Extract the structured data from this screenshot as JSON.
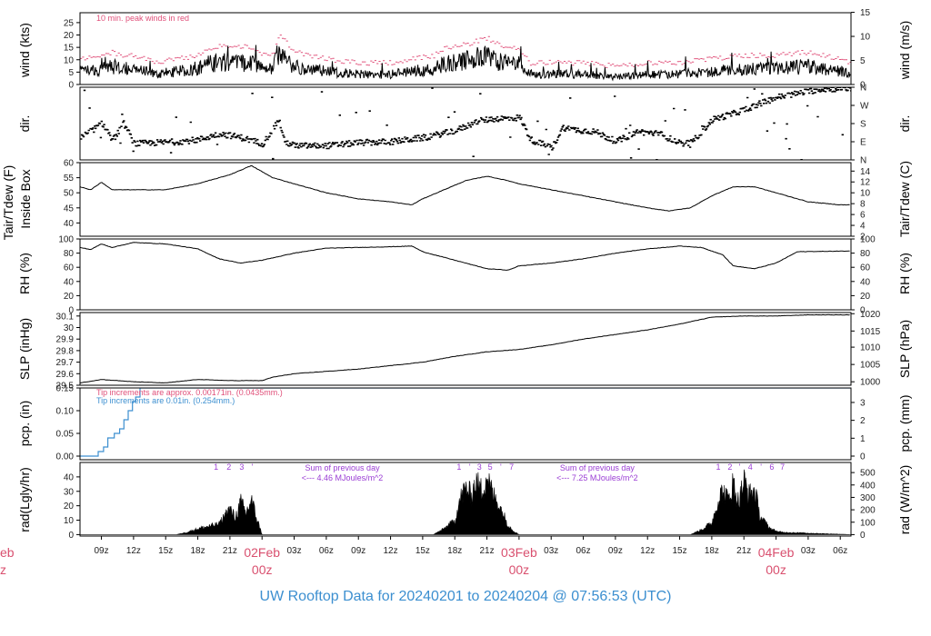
{
  "title": "UW Rooftop Data for 20240201  to  20240204 @ 07:56:53  (UTC)",
  "colors": {
    "frame": "#000000",
    "data": "#000000",
    "peak": "#e0507a",
    "pcp": "#3c8fd0",
    "purple": "#9a3dd4",
    "day": "#d9506f"
  },
  "time_axis": {
    "start_hour_utc": 7,
    "end_hour_utc": 79,
    "ticks": [
      {
        "h": 9,
        "label": "09z"
      },
      {
        "h": 12,
        "label": "12z"
      },
      {
        "h": 15,
        "label": "15z"
      },
      {
        "h": 18,
        "label": "18z"
      },
      {
        "h": 21,
        "label": "21z"
      },
      {
        "h": 27,
        "label": "03z"
      },
      {
        "h": 30,
        "label": "06z"
      },
      {
        "h": 33,
        "label": "09z"
      },
      {
        "h": 36,
        "label": "12z"
      },
      {
        "h": 39,
        "label": "15z"
      },
      {
        "h": 42,
        "label": "18z"
      },
      {
        "h": 45,
        "label": "21z"
      },
      {
        "h": 51,
        "label": "03z"
      },
      {
        "h": 54,
        "label": "06z"
      },
      {
        "h": 57,
        "label": "09z"
      },
      {
        "h": 60,
        "label": "12z"
      },
      {
        "h": 63,
        "label": "15z"
      },
      {
        "h": 66,
        "label": "18z"
      },
      {
        "h": 69,
        "label": "21z"
      },
      {
        "h": 75,
        "label": "03z"
      },
      {
        "h": 78,
        "label": "06z"
      }
    ],
    "day_marks": [
      {
        "h": 24,
        "day": "02Feb",
        "zone": "00z"
      },
      {
        "h": 48,
        "day": "03Feb",
        "zone": "00z"
      },
      {
        "h": 72,
        "day": "04Feb",
        "zone": "00z"
      }
    ],
    "left_cut_day": "eb",
    "left_cut_zone": "z"
  },
  "chart_data": [
    {
      "type": "line",
      "panel": "wind",
      "ylabel": "wind (kts)",
      "ylabel_right": "wind (m/s)",
      "ylim": [
        0,
        29
      ],
      "yticks": [
        0,
        5,
        10,
        15,
        20,
        25
      ],
      "right_ticks": [
        {
          "v": 0,
          "label": "0"
        },
        {
          "v": 9.72,
          "label": "5"
        },
        {
          "v": 19.44,
          "label": "10"
        },
        {
          "v": 29.16,
          "label": "15"
        }
      ],
      "annotation": "10 min. peak winds in red",
      "series": [
        {
          "kind": "wind",
          "x": [
            7,
            9,
            10,
            11,
            12,
            14,
            16,
            18,
            19,
            21,
            23,
            24,
            25,
            25.5,
            27,
            30,
            33,
            36,
            38,
            40,
            41,
            42,
            43,
            44,
            45,
            46,
            47,
            48,
            49,
            51,
            54,
            57,
            60,
            63,
            66,
            69,
            72,
            75,
            78,
            79
          ],
          "y": [
            5,
            6,
            7,
            6,
            6,
            4,
            5,
            6,
            8,
            9,
            8,
            6,
            6,
            12,
            7,
            5,
            4,
            4,
            5,
            6,
            8,
            9,
            9,
            10,
            11,
            9,
            8,
            8,
            4,
            4,
            4,
            3,
            4,
            4,
            5,
            6,
            6,
            7,
            5,
            4
          ]
        }
      ]
    },
    {
      "type": "scatter",
      "panel": "dir",
      "ylabel": "dir.",
      "ylabel_right": "dir.",
      "ylim": [
        0,
        360
      ],
      "right_ticks": [
        {
          "v": 0,
          "label": "N"
        },
        {
          "v": 90,
          "label": "E"
        },
        {
          "v": 180,
          "label": "S"
        },
        {
          "v": 270,
          "label": "W"
        },
        {
          "v": 360,
          "label": "N"
        }
      ],
      "series": [
        {
          "kind": "dir",
          "x": [
            7,
            9,
            10,
            11,
            12,
            14,
            16,
            18,
            20,
            22,
            24,
            25.5,
            26,
            27,
            30,
            33,
            36,
            39,
            42,
            44,
            45,
            46,
            47,
            48,
            49,
            50,
            51,
            52,
            53,
            55,
            57,
            59,
            61,
            63,
            64,
            66,
            68,
            70,
            72,
            74,
            76,
            79
          ],
          "y": [
            110,
            180,
            100,
            180,
            80,
            85,
            90,
            100,
            130,
            110,
            80,
            200,
            90,
            70,
            70,
            85,
            90,
            110,
            145,
            190,
            200,
            205,
            205,
            210,
            100,
            80,
            60,
            160,
            150,
            140,
            90,
            140,
            130,
            80,
            85,
            200,
            230,
            270,
            310,
            330,
            350,
            355
          ]
        }
      ]
    },
    {
      "type": "line",
      "panel": "temp",
      "ylabel": "Tair/Tdew (F)",
      "ylabel2": "Inside Box",
      "ylabel_right": "Tair/Tdew (C)",
      "ylim": [
        35.6,
        60
      ],
      "yticks": [
        40,
        45,
        50,
        55,
        60
      ],
      "right_ticks": [
        {
          "v": 35.6,
          "label": "2"
        },
        {
          "v": 39.2,
          "label": "4"
        },
        {
          "v": 42.8,
          "label": "6"
        },
        {
          "v": 46.4,
          "label": "8"
        },
        {
          "v": 50,
          "label": "10"
        },
        {
          "v": 53.6,
          "label": "12"
        },
        {
          "v": 57.2,
          "label": "14"
        }
      ],
      "series": [
        {
          "kind": "temp",
          "x": [
            7,
            8,
            9,
            10,
            12,
            15,
            18,
            21,
            23,
            24,
            25,
            27,
            30,
            33,
            36,
            38,
            39,
            41,
            43,
            45,
            47,
            48,
            51,
            54,
            57,
            60,
            62,
            64,
            66,
            68,
            70,
            72,
            75,
            78,
            79
          ],
          "y": [
            52,
            51,
            53.5,
            51,
            51,
            51,
            53,
            56,
            59,
            57,
            55,
            53,
            50,
            48,
            47,
            46,
            48,
            51,
            54,
            55.5,
            54,
            53,
            51,
            49,
            47,
            45,
            44,
            45,
            49,
            52,
            52,
            50,
            47,
            46,
            46
          ]
        }
      ]
    },
    {
      "type": "line",
      "panel": "rh",
      "ylabel": "RH (%)",
      "ylabel_right": "RH (%)",
      "ylim": [
        0,
        100
      ],
      "yticks": [
        0,
        20,
        40,
        60,
        80,
        100
      ],
      "right_ticks": [
        {
          "v": 0,
          "label": "0"
        },
        {
          "v": 20,
          "label": "20"
        },
        {
          "v": 40,
          "label": "40"
        },
        {
          "v": 60,
          "label": "60"
        },
        {
          "v": 80,
          "label": "80"
        },
        {
          "v": 100,
          "label": "100"
        }
      ],
      "series": [
        {
          "kind": "rh",
          "x": [
            7,
            8,
            9,
            10,
            12,
            15,
            18,
            20,
            22,
            24,
            27,
            30,
            33,
            36,
            38,
            39,
            42,
            45,
            47,
            48,
            51,
            54,
            57,
            60,
            63,
            65,
            67,
            68,
            70,
            72,
            74,
            79
          ],
          "y": [
            88,
            85,
            93,
            88,
            95,
            93,
            86,
            72,
            66,
            70,
            80,
            87,
            88,
            89,
            90,
            82,
            70,
            58,
            56,
            62,
            66,
            72,
            80,
            86,
            90,
            88,
            78,
            62,
            58,
            66,
            82,
            83
          ]
        }
      ]
    },
    {
      "type": "line",
      "panel": "slp",
      "ylabel": "SLP (inHg)",
      "ylabel_right": "SLP (hPa)",
      "ylim": [
        29.5,
        30.13
      ],
      "yticks": [
        29.5,
        29.6,
        29.7,
        29.8,
        29.9,
        30.0,
        30.1
      ],
      "right_ticks": [
        {
          "v": 29.53,
          "label": "1000"
        },
        {
          "v": 29.68,
          "label": "1005"
        },
        {
          "v": 29.83,
          "label": "1010"
        },
        {
          "v": 29.97,
          "label": "1015"
        },
        {
          "v": 30.12,
          "label": "1020"
        }
      ],
      "series": [
        {
          "kind": "slp",
          "x": [
            7,
            9,
            12,
            15,
            18,
            21,
            24,
            25,
            27,
            30,
            33,
            36,
            39,
            42,
            45,
            48,
            51,
            54,
            57,
            60,
            63,
            65,
            66,
            69,
            72,
            75,
            79
          ],
          "y": [
            29.52,
            29.55,
            29.53,
            29.52,
            29.55,
            29.54,
            29.54,
            29.57,
            29.6,
            29.62,
            29.64,
            29.67,
            29.7,
            29.75,
            29.79,
            29.81,
            29.85,
            29.9,
            29.94,
            29.98,
            30.03,
            30.07,
            30.09,
            30.1,
            30.1,
            30.11,
            30.11
          ]
        }
      ]
    },
    {
      "type": "line",
      "panel": "pcp",
      "ylabel": "pcp. (in)",
      "ylabel_right": "pcp. (mm)",
      "ylim": [
        -0.008,
        0.15
      ],
      "yticks": [
        0,
        0.05,
        0.1,
        0.15
      ],
      "ytick_labels": [
        "0.00",
        "0.05",
        "0.10",
        "0.15"
      ],
      "right_ticks": [
        {
          "v": 0,
          "label": "0"
        },
        {
          "v": 0.03937,
          "label": "1"
        },
        {
          "v": 0.07874,
          "label": "2"
        },
        {
          "v": 0.11811,
          "label": "3"
        }
      ],
      "annotations": [
        "Tip increments are approx. 0.00171in. (0.0435mm.)",
        "Tip increments are 0.01in. (0.254mm.)"
      ],
      "series": [
        {
          "kind": "pcp",
          "x": [
            7,
            8.7,
            8.7,
            9.2,
            9.2,
            9.6,
            9.6,
            10.2,
            10.2,
            10.7,
            10.7,
            11.1,
            11.1,
            11.5,
            11.5,
            11.9,
            11.9,
            12.2,
            12.2,
            12.6,
            12.6,
            79
          ],
          "y": [
            0,
            0,
            0.01,
            0.01,
            0.02,
            0.02,
            0.04,
            0.04,
            0.05,
            0.05,
            0.06,
            0.06,
            0.08,
            0.08,
            0.1,
            0.1,
            0.12,
            0.12,
            0.13,
            0.13,
            0.15,
            0.15
          ]
        }
      ]
    },
    {
      "type": "area",
      "panel": "rad",
      "ylabel": "rad(Lgly/hr)",
      "ylabel_right": "rad (W/m^2)",
      "ylim": [
        -1,
        50
      ],
      "yticks": [
        0,
        10,
        20,
        30,
        40
      ],
      "right_ticks": [
        {
          "v": 0,
          "label": "0"
        },
        {
          "v": 8.6,
          "label": "100"
        },
        {
          "v": 17.2,
          "label": "200"
        },
        {
          "v": 25.8,
          "label": "300"
        },
        {
          "v": 34.4,
          "label": "400"
        },
        {
          "v": 43,
          "label": "500"
        }
      ],
      "hour_markers": [
        {
          "h": 19.7,
          "label": "1"
        },
        {
          "h": 20.9,
          "label": "2"
        },
        {
          "h": 22.1,
          "label": "3"
        },
        {
          "h": 23.1,
          "label": "'"
        },
        {
          "h": 42.4,
          "label": "1"
        },
        {
          "h": 43.4,
          "label": "'"
        },
        {
          "h": 44.3,
          "label": "3"
        },
        {
          "h": 45.3,
          "label": "5"
        },
        {
          "h": 46.3,
          "label": "'"
        },
        {
          "h": 47.3,
          "label": "7"
        },
        {
          "h": 66.6,
          "label": "1"
        },
        {
          "h": 67.7,
          "label": "2"
        },
        {
          "h": 68.6,
          "label": "'"
        },
        {
          "h": 69.6,
          "label": "4"
        },
        {
          "h": 70.6,
          "label": "'"
        },
        {
          "h": 71.6,
          "label": "6"
        },
        {
          "h": 72.6,
          "label": "7"
        }
      ],
      "daily_sums": [
        {
          "h": 31.5,
          "line1": "Sum of previous day",
          "line2": "<--- 4.46 MJoules/m^2"
        },
        {
          "h": 55.3,
          "line1": "Sum of previous day",
          "line2": "<--- 7.25 MJoules/m^2"
        }
      ],
      "series": [
        {
          "kind": "rad",
          "x": [
            7,
            16,
            17,
            18,
            19,
            20,
            20.5,
            21,
            21.5,
            22,
            22.5,
            23,
            23.5,
            24,
            31,
            40,
            41,
            42,
            42.5,
            43,
            43.5,
            44,
            44.5,
            45,
            45.5,
            46,
            46.5,
            47,
            47.5,
            48,
            55,
            64,
            65,
            66,
            66.5,
            67,
            67.5,
            68,
            68.5,
            69,
            69.5,
            70,
            70.5,
            71,
            71.5,
            72,
            72.5,
            79
          ],
          "y": [
            0,
            0,
            2,
            5,
            7,
            9,
            16,
            22,
            14,
            28,
            18,
            30,
            14,
            0,
            0,
            0,
            5,
            12,
            30,
            40,
            34,
            44,
            38,
            50,
            35,
            28,
            18,
            8,
            3,
            0,
            0,
            0,
            4,
            10,
            26,
            38,
            30,
            44,
            28,
            46,
            34,
            38,
            16,
            10,
            5,
            3,
            2,
            0
          ]
        }
      ]
    }
  ]
}
